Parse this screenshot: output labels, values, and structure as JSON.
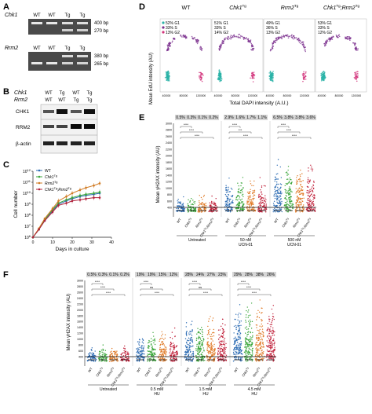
{
  "panels": {
    "A": {
      "letter": "A",
      "gel1": {
        "gene": "Chk1",
        "lanes": [
          "WT",
          "WT",
          "Tg",
          "Tg"
        ],
        "bands": [
          "400 bp",
          "270 bp"
        ]
      },
      "gel2": {
        "gene": "Rrm2",
        "lanes": [
          "WT",
          "WT",
          "Tg",
          "Tg"
        ],
        "bands": [
          "380 bp",
          "265 bp"
        ]
      }
    },
    "B": {
      "letter": "B",
      "row_labels": [
        "Chk1",
        "Rrm2"
      ],
      "chk1_lanes": [
        "WT",
        "Tg",
        "WT",
        "Tg"
      ],
      "rrm2_lanes": [
        "WT",
        "WT",
        "Tg",
        "Tg"
      ],
      "blots": [
        "CHK1",
        "RRM2",
        "β-actin"
      ]
    },
    "C": {
      "letter": "C"
    },
    "D": {
      "letter": "D",
      "ylabel": "Mean EdU intensity (AU)",
      "xlabel": "Total DAPI intensity (A.U.)",
      "legend": [
        {
          "label": "G1",
          "color": "#2bb3a8"
        },
        {
          "label": "S",
          "color": "#7b2f8e"
        },
        {
          "label": "G2",
          "color": "#d2327a"
        }
      ],
      "xticks": [
        "400000",
        "800000",
        "1200000"
      ],
      "facets": [
        {
          "title_main": "WT",
          "title_sup": "",
          "g1": "52% G1",
          "s": "33% S",
          "g2": "13% G2"
        },
        {
          "title_main": "Chk1",
          "title_sup": "Tg",
          "g1": "51% G1",
          "s": "33% S",
          "g2": "14% G2"
        },
        {
          "title_main": "Rrm2",
          "title_sup": "Tg",
          "g1": "49% G1",
          "s": "36% S",
          "g2": "13% G2"
        },
        {
          "title_main": "Chk1Tg;Rrm2",
          "title_sup": "Tg",
          "g1": "53% G1",
          "s": "33% S",
          "g2": "12% G2"
        }
      ]
    },
    "E": {
      "letter": "E",
      "ylabel": "Mean γH2AX intensity (AU)",
      "percent_labels": [
        "0.5%",
        "0.3%",
        "0.1%",
        "0.2%",
        "2.9%",
        "1.6%",
        "1.7%",
        "1.1%",
        "6.5%",
        "3.8%",
        "3.8%",
        "3.6%"
      ],
      "sig": [
        "****",
        "****",
        "****",
        "****",
        "***",
        "****",
        "****",
        "****",
        "****"
      ],
      "groups": [
        {
          "name": "Untreated",
          "dose": ""
        },
        {
          "name": "50 nM",
          "dose": "UCN-01"
        },
        {
          "name": "500 nM",
          "dose": "UCN-01"
        }
      ]
    },
    "F": {
      "letter": "F",
      "ylabel": "Mean γH2AX intensity (AU)",
      "percent_labels": [
        "0.5%",
        "0.3%",
        "0.1%",
        "0.2%",
        "19%",
        "19%",
        "15%",
        "12%",
        "28%",
        "24%",
        "27%",
        "23%",
        "29%",
        "28%",
        "38%",
        "26%"
      ],
      "sig": [
        "****",
        "****",
        "****",
        "****",
        "ns",
        "****",
        "****",
        "ns",
        "****",
        "****",
        "****",
        "****"
      ],
      "groups": [
        {
          "name": "Untreated",
          "dose": ""
        },
        {
          "name": "0.5 mM",
          "dose": "HU"
        },
        {
          "name": "1.5 mM",
          "dose": "HU"
        },
        {
          "name": "4.5 mM",
          "dose": "HU"
        }
      ]
    },
    "E_F_axis": {
      "yticks": [
        "3000",
        "2800",
        "2600",
        "2400",
        "2200",
        "2000",
        "1800",
        "1600",
        "1400",
        "1200",
        "1000",
        "800",
        "600",
        "400"
      ],
      "threshold": "400",
      "colors": [
        "#2e6db4",
        "#3aa63a",
        "#e07a27",
        "#c0203a"
      ]
    }
  },
  "chart_data": [
    {
      "type": "line",
      "panel": "C",
      "xlabel": "Days in culture",
      "ylabel": "Cell number",
      "x": [
        0,
        3,
        6,
        10,
        13,
        17,
        20,
        24,
        27,
        31,
        34
      ],
      "xticks": [
        0,
        10,
        20,
        30,
        40
      ],
      "yticks": [
        "10^6",
        "10^7",
        "10^8",
        "10^9",
        "10^10",
        "10^11",
        "10^12"
      ],
      "ylog": true,
      "ylim": [
        6,
        12
      ],
      "series": [
        {
          "name": "WT",
          "color": "#2e6db4",
          "log10_values": [
            6.0,
            6.7,
            7.5,
            8.4,
            9.0,
            9.3,
            9.5,
            9.7,
            9.8,
            9.9,
            10.0
          ]
        },
        {
          "name": "Chk1Tg",
          "color": "#3aa63a",
          "log10_values": [
            6.0,
            6.7,
            7.6,
            8.5,
            9.1,
            9.4,
            9.6,
            9.8,
            9.9,
            10.0,
            10.1
          ]
        },
        {
          "name": "Rrm2Tg",
          "color": "#d07a22",
          "log10_values": [
            6.0,
            6.8,
            7.7,
            8.6,
            9.3,
            9.7,
            10.0,
            10.3,
            10.5,
            10.7,
            10.9
          ]
        },
        {
          "name": "Chk1Tg;Rrm2Tg",
          "color": "#b0203a",
          "log10_values": [
            6.0,
            6.7,
            7.5,
            8.3,
            8.9,
            9.1,
            9.3,
            9.4,
            9.5,
            9.6,
            9.6
          ]
        }
      ]
    }
  ]
}
